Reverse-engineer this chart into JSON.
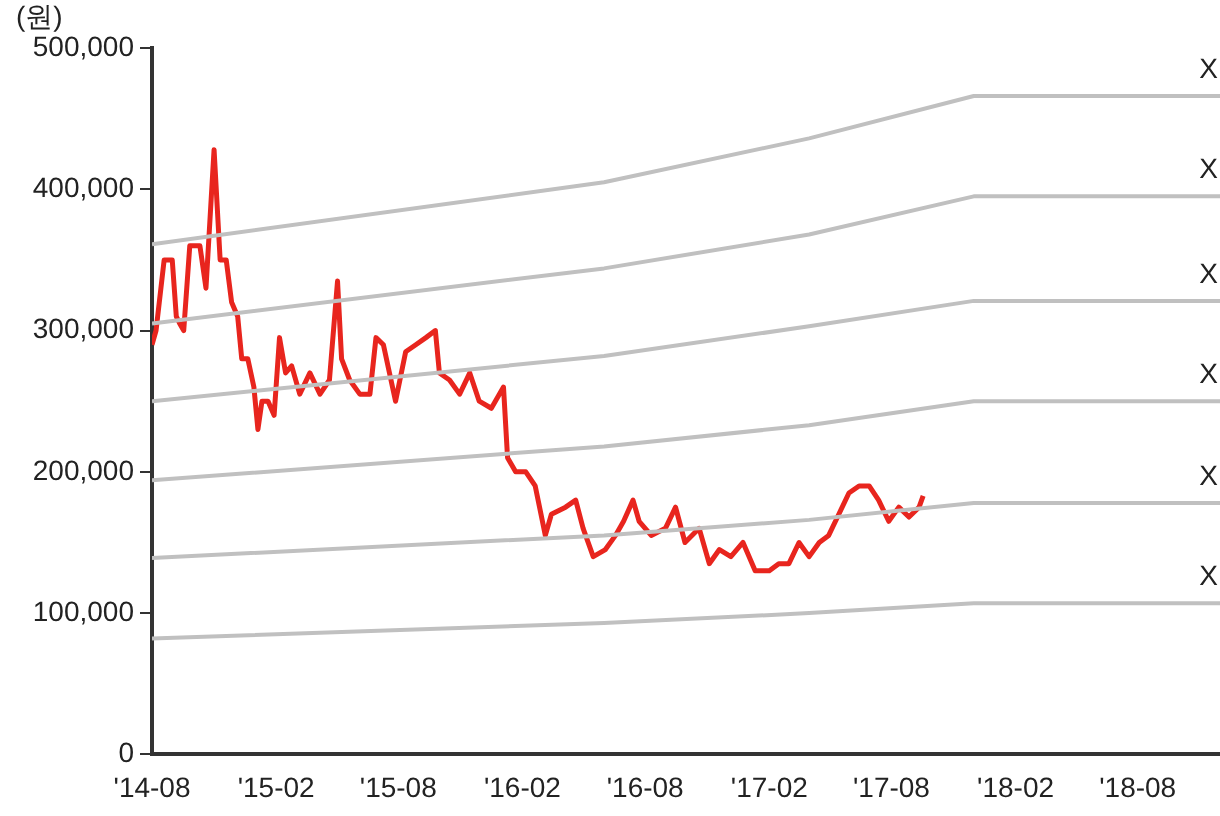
{
  "chart_data": {
    "type": "line",
    "ylabel": "(원)",
    "legend": false,
    "grid": false,
    "marker": "none",
    "line_style": "solid",
    "xlim": [
      "2014-08",
      "2018-12"
    ],
    "xticks": [
      {
        "value": "2014-08",
        "label": "'14-08"
      },
      {
        "value": "2015-02",
        "label": "'15-02"
      },
      {
        "value": "2015-08",
        "label": "'15-08"
      },
      {
        "value": "2016-02",
        "label": "'16-02"
      },
      {
        "value": "2016-08",
        "label": "'16-08"
      },
      {
        "value": "2017-02",
        "label": "'17-02"
      },
      {
        "value": "2017-08",
        "label": "'17-08"
      },
      {
        "value": "2018-02",
        "label": "'18-02"
      },
      {
        "value": "2018-08",
        "label": "'18-08"
      }
    ],
    "ylim": [
      0,
      500000
    ],
    "yticks": [
      {
        "value": 0,
        "label": "0"
      },
      {
        "value": 100000,
        "label": "100,000"
      },
      {
        "value": 200000,
        "label": "200,000"
      },
      {
        "value": 300000,
        "label": "300,000"
      },
      {
        "value": 400000,
        "label": "400,000"
      },
      {
        "value": 500000,
        "label": "500,000"
      }
    ],
    "series": [
      {
        "color": "#e8251e",
        "x": [
          "2014-08-01",
          "2014-08-07",
          "2014-08-19",
          "2014-08-31",
          "2014-09-06",
          "2014-09-11",
          "2014-09-17",
          "2014-09-26",
          "2014-10-11",
          "2014-10-20",
          "2014-11-01",
          "2014-11-10",
          "2014-11-19",
          "2014-11-27",
          "2014-12-06",
          "2014-12-12",
          "2014-12-21",
          "2014-12-30",
          "2015-01-05",
          "2015-01-11",
          "2015-01-20",
          "2015-01-29",
          "2015-02-06",
          "2015-02-15",
          "2015-02-24",
          "2015-03-08",
          "2015-03-23",
          "2015-04-07",
          "2015-04-21",
          "2015-05-03",
          "2015-05-09",
          "2015-05-21",
          "2015-06-05",
          "2015-06-20",
          "2015-06-29",
          "2015-07-10",
          "2015-07-19",
          "2015-07-28",
          "2015-08-12",
          "2015-08-27",
          "2015-09-11",
          "2015-09-25",
          "2015-10-01",
          "2015-10-16",
          "2015-10-31",
          "2015-11-15",
          "2015-11-29",
          "2015-12-17",
          "2016-01-04",
          "2016-01-10",
          "2016-01-22",
          "2016-02-06",
          "2016-02-20",
          "2016-03-06",
          "2016-03-15",
          "2016-04-05",
          "2016-04-20",
          "2016-05-01",
          "2016-05-16",
          "2016-06-03",
          "2016-06-18",
          "2016-06-30",
          "2016-07-14",
          "2016-07-23",
          "2016-08-10",
          "2016-08-31",
          "2016-09-15",
          "2016-09-29",
          "2016-10-20",
          "2016-11-04",
          "2016-11-19",
          "2016-12-06",
          "2016-12-24",
          "2017-01-11",
          "2017-02-01",
          "2017-02-15",
          "2017-03-02",
          "2017-03-17",
          "2017-04-01",
          "2017-04-16",
          "2017-04-30",
          "2017-05-15",
          "2017-05-30",
          "2017-06-14",
          "2017-06-29",
          "2017-07-13",
          "2017-07-28",
          "2017-08-12",
          "2017-08-27",
          "2017-09-11",
          "2017-09-17"
        ],
        "values": [
          290000,
          300000,
          350000,
          350000,
          310000,
          305000,
          300000,
          360000,
          360000,
          330000,
          428000,
          350000,
          350000,
          320000,
          310000,
          280000,
          280000,
          260000,
          230000,
          250000,
          250000,
          240000,
          295000,
          270000,
          275000,
          255000,
          270000,
          255000,
          265000,
          335000,
          280000,
          265000,
          255000,
          255000,
          295000,
          290000,
          270000,
          250000,
          285000,
          290000,
          295000,
          300000,
          270000,
          265000,
          255000,
          270000,
          250000,
          245000,
          260000,
          210000,
          200000,
          200000,
          190000,
          155000,
          170000,
          175000,
          180000,
          160000,
          140000,
          145000,
          155000,
          165000,
          180000,
          165000,
          155000,
          160000,
          175000,
          150000,
          160000,
          135000,
          145000,
          140000,
          150000,
          130000,
          130000,
          135000,
          135000,
          150000,
          140000,
          150000,
          155000,
          170000,
          185000,
          190000,
          190000,
          180000,
          165000,
          175000,
          168000,
          175000,
          183000
        ]
      },
      {
        "name": "X",
        "color": "#c0c0c0",
        "x": [
          "2014-08",
          "2016-06",
          "2017-04",
          "2017-12",
          "2018-12"
        ],
        "values": [
          361000,
          405000,
          436000,
          466000,
          466000
        ]
      },
      {
        "name": "X",
        "color": "#c0c0c0",
        "x": [
          "2014-08",
          "2016-06",
          "2017-04",
          "2017-12",
          "2018-12"
        ],
        "values": [
          305000,
          344000,
          368000,
          395000,
          395000
        ]
      },
      {
        "name": "X",
        "color": "#c0c0c0",
        "x": [
          "2014-08",
          "2016-06",
          "2017-04",
          "2017-12",
          "2018-12"
        ],
        "values": [
          250000,
          282000,
          303000,
          321000,
          321000
        ]
      },
      {
        "name": "X",
        "color": "#c0c0c0",
        "x": [
          "2014-08",
          "2016-06",
          "2017-04",
          "2017-12",
          "2018-12"
        ],
        "values": [
          194000,
          218000,
          233000,
          250000,
          250000
        ]
      },
      {
        "name": "X",
        "color": "#c0c0c0",
        "x": [
          "2014-08",
          "2016-06",
          "2017-04",
          "2017-12",
          "2018-12"
        ],
        "values": [
          139000,
          155000,
          166000,
          178000,
          178000
        ]
      },
      {
        "name": "X",
        "color": "#c0c0c0",
        "x": [
          "2014-08",
          "2016-06",
          "2017-04",
          "2017-12",
          "2018-12"
        ],
        "values": [
          82000,
          93000,
          100000,
          107000,
          107000
        ]
      }
    ]
  }
}
